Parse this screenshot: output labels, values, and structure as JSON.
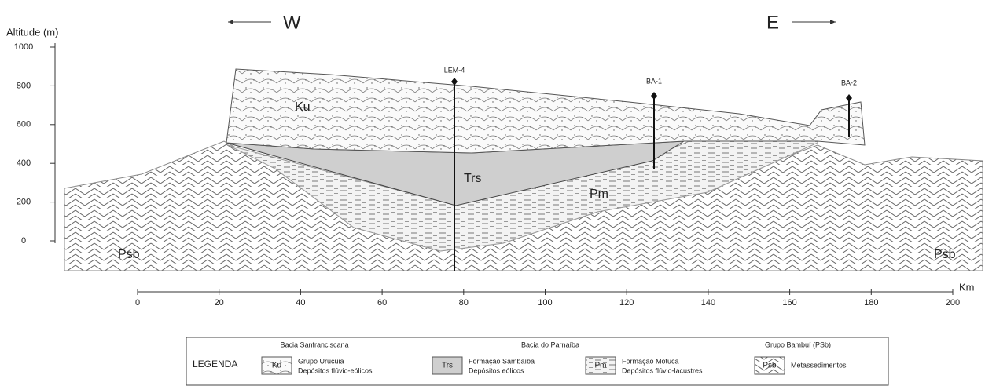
{
  "header": {
    "direction_west": "W",
    "direction_east": "E"
  },
  "axes": {
    "y_label": "Altitude (m)",
    "y_ticks": [
      1000,
      800,
      600,
      400,
      200,
      0
    ],
    "x_label": "Km",
    "x_ticks": [
      0,
      20,
      40,
      60,
      80,
      100,
      120,
      140,
      160,
      180,
      200
    ]
  },
  "section": {
    "unit_labels": [
      "Ku",
      "Trs",
      "Pm",
      "Psb",
      "Psb"
    ],
    "wells": [
      "LEM-4",
      "BA-1",
      "BA-2"
    ]
  },
  "legend": {
    "title": "LEGENDA",
    "groups": [
      "Bacia Sanfranciscana",
      "Bacia do Parnaíba",
      "Grupo Bambuí (PSb)"
    ],
    "items": [
      {
        "symbol": "Ku",
        "name": "Grupo Urucuia",
        "description": "Depósitos flúvio-eólicos"
      },
      {
        "symbol": "Trs",
        "name": "Formação Sambaíba",
        "description": "Depósitos eólicos"
      },
      {
        "symbol": "Pm",
        "name": "Formação Motuca",
        "description": "Depósitos flúvio-lacustres"
      },
      {
        "symbol": "Psb",
        "name": "Metassedimentos"
      }
    ]
  }
}
